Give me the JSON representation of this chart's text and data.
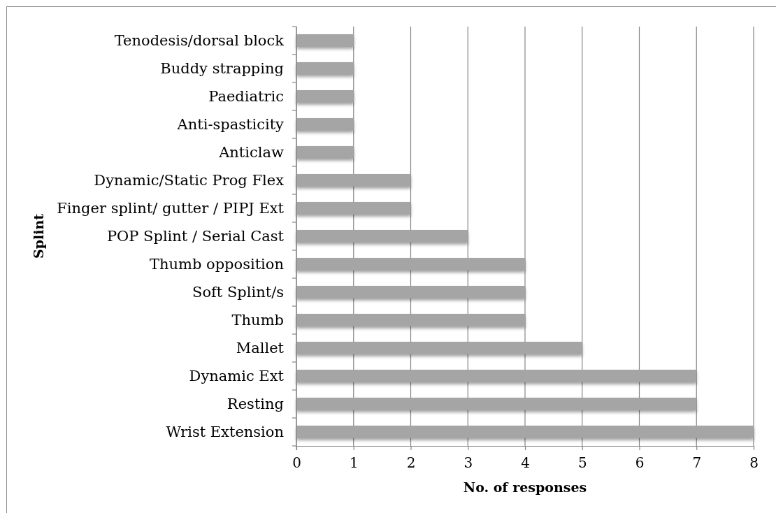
{
  "chart_data": {
    "type": "bar",
    "orientation": "horizontal",
    "xlabel": "No. of responses",
    "ylabel": "Splint",
    "categories": [
      "Tenodesis/dorsal block",
      "Buddy strapping",
      "Paediatric",
      "Anti-spasticity",
      "Anticlaw",
      "Dynamic/Static Prog Flex",
      "Finger splint/ gutter / PIPJ Ext",
      "POP Splint / Serial Cast",
      "Thumb opposition",
      "Soft Splint/s",
      "Thumb",
      "Mallet",
      "Dynamic Ext",
      "Resting",
      "Wrist Extension"
    ],
    "values": [
      1,
      1,
      1,
      1,
      1,
      2,
      2,
      3,
      4,
      4,
      4,
      5,
      7,
      7,
      8
    ],
    "color": "#a5a5a5",
    "xlim": [
      0,
      8
    ],
    "xticks": [
      0,
      1,
      2,
      3,
      4,
      5,
      6,
      7,
      8
    ],
    "grid": "x"
  }
}
